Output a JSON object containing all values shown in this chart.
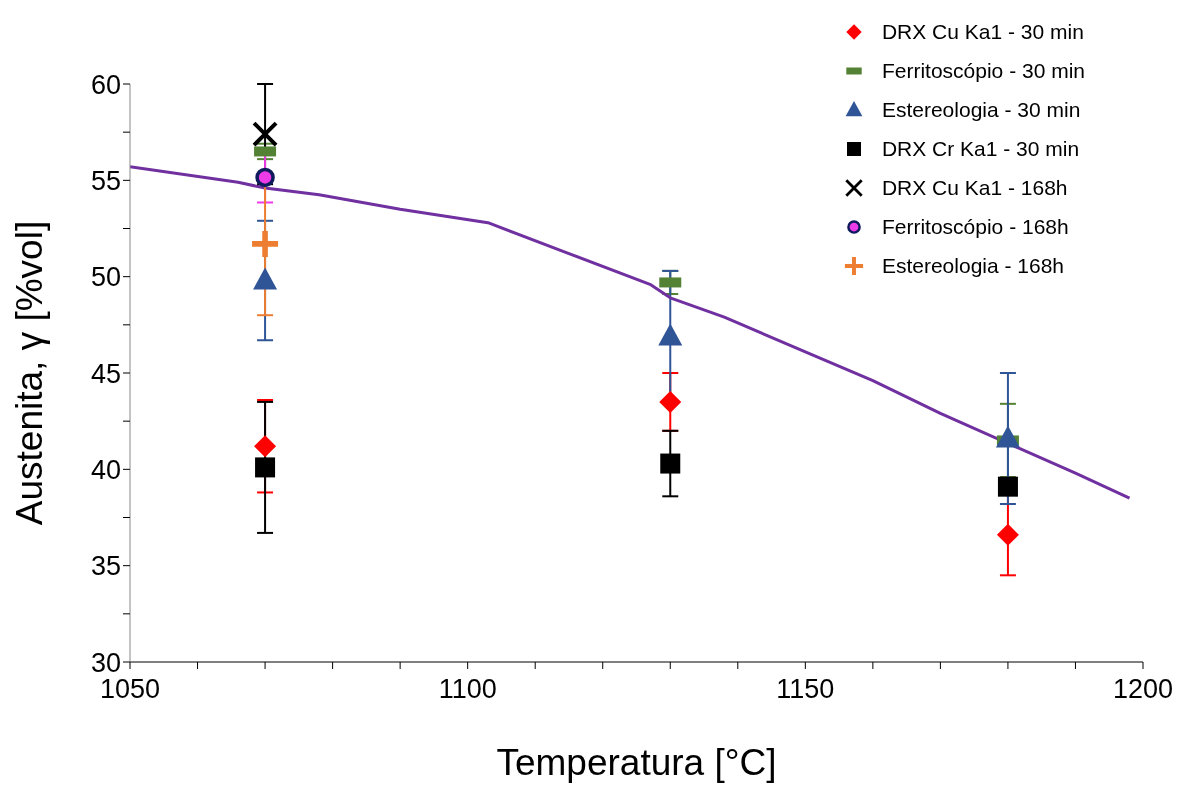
{
  "chart_data": {
    "type": "scatter",
    "xlabel": "Temperatura [°C]",
    "ylabel": "Austenita, γ [%vol]",
    "xlim": [
      1050,
      1200
    ],
    "xticks": [
      1050,
      {
        "value": 1060,
        "label": null
      },
      {
        "value": 1070,
        "label": null
      },
      {
        "value": 1080,
        "label": null
      },
      {
        "value": 1090,
        "label": null
      },
      1100,
      {
        "value": 1110,
        "label": null
      },
      {
        "value": 1120,
        "label": null
      },
      {
        "value": 1130,
        "label": null
      },
      {
        "value": 1140,
        "label": null
      },
      1150,
      {
        "value": 1160,
        "label": null
      },
      {
        "value": 1170,
        "label": null
      },
      {
        "value": 1180,
        "label": null
      },
      {
        "value": 1190,
        "label": null
      },
      1200
    ],
    "ylim": [
      30,
      60
    ],
    "yticks": [
      30,
      {
        "value": 32.5,
        "label": null
      },
      35,
      {
        "value": 37.5,
        "label": null
      },
      40,
      {
        "value": 42.5,
        "label": null
      },
      45,
      {
        "value": 47.5,
        "label": null
      },
      50,
      {
        "value": 52.5,
        "label": null
      },
      55,
      {
        "value": 57.5,
        "label": null
      },
      60
    ],
    "grid": false,
    "legend": "top right",
    "series": [
      {
        "name": "DRX Cu Ka1 - 30 min",
        "color": "#ff0000",
        "marker": "diamond",
        "x": [
          1070,
          1130,
          1180
        ],
        "values": [
          41.2,
          43.5,
          36.6
        ],
        "errors": [
          2.4,
          1.5,
          2.1
        ]
      },
      {
        "name": "Ferritoscópio - 30 min",
        "color": "#548235",
        "x": [
          1070,
          1130,
          1180
        ],
        "values": [
          56.5,
          49.7,
          41.5
        ],
        "errors": [
          0.4,
          0.6,
          1.9
        ]
      },
      {
        "name": "Estereologia - 30 min",
        "color": "#2f5597",
        "marker": "triangle",
        "x": [
          1070,
          1130,
          1180
        ],
        "values": [
          49.8,
          46.9,
          41.6
        ],
        "errors": [
          3.1,
          3.4,
          3.4
        ]
      },
      {
        "name": "DRX Cr Ka1 - 30 min",
        "color": "#000000",
        "marker": "square",
        "x": [
          1070,
          1130,
          1180
        ],
        "values": [
          40.1,
          40.3,
          39.1
        ],
        "errors": [
          3.4,
          1.7,
          null
        ]
      },
      {
        "type": "line",
        "color": "#7030a0",
        "marker": "none",
        "x": [
          1050,
          1066,
          1070,
          1078,
          1090,
          1103,
          1115,
          1127,
          1130,
          1138,
          1150,
          1160,
          1170,
          1190,
          1198
        ],
        "values": [
          55.7,
          54.9,
          54.6,
          54.25,
          53.5,
          52.8,
          51.2,
          49.6,
          48.9,
          47.9,
          46.1,
          44.6,
          42.9,
          39.8,
          38.5
        ]
      },
      {
        "name": "DRX Cu Ka1 - 168h",
        "color": "#000000",
        "marker": "cross",
        "x": [
          1070
        ],
        "values": [
          57.4
        ],
        "errors": [
          2.6
        ]
      },
      {
        "name": "Ferritoscópio - 168h",
        "color": "#ee3be8",
        "marker": "circle",
        "x": [
          1070
        ],
        "values": [
          55.15
        ],
        "errors": [
          1.3
        ]
      },
      {
        "name": "Estereologia - 168h",
        "color": "#ed7d31",
        "marker": "plus",
        "x": [
          1070
        ],
        "values": [
          51.7
        ],
        "errors": [
          3.7
        ]
      }
    ]
  }
}
